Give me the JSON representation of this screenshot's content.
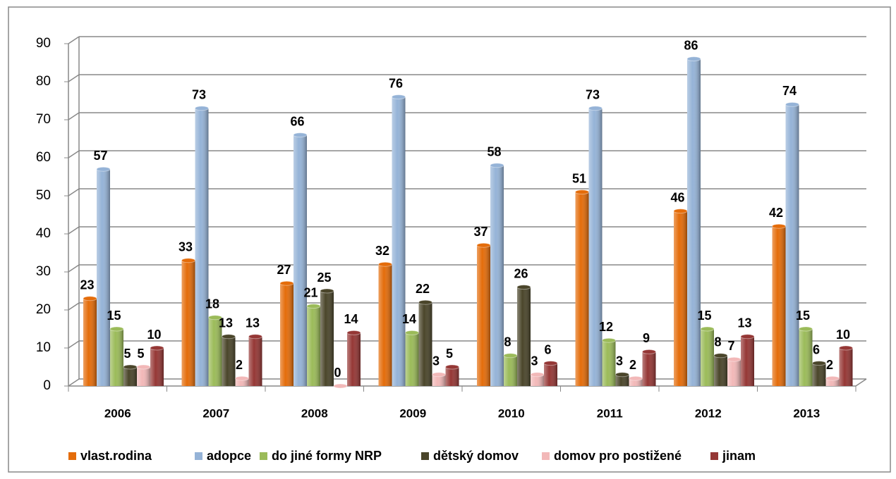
{
  "chart_data": {
    "type": "bar",
    "categories": [
      "2006",
      "2007",
      "2008",
      "2009",
      "2010",
      "2011",
      "2012",
      "2013"
    ],
    "series": [
      {
        "name": "vlast.rodina",
        "color": "#e46c0a",
        "values": [
          23,
          33,
          27,
          32,
          37,
          51,
          46,
          42
        ]
      },
      {
        "name": "adopce",
        "color": "#95b3d7",
        "values": [
          57,
          73,
          66,
          76,
          58,
          73,
          86,
          74
        ]
      },
      {
        "name": "do jiné formy NRP",
        "color": "#9bbb59",
        "values": [
          15,
          18,
          21,
          14,
          8,
          12,
          15,
          15
        ]
      },
      {
        "name": "dětský domov",
        "color": "#4a452a",
        "values": [
          5,
          13,
          25,
          22,
          26,
          3,
          8,
          6
        ]
      },
      {
        "name": "domov pro postižené",
        "color": "#f2b8b8",
        "values": [
          5,
          2,
          0,
          3,
          3,
          2,
          7,
          2
        ]
      },
      {
        "name": "jinam",
        "color": "#953735",
        "values": [
          10,
          13,
          14,
          5,
          6,
          9,
          13,
          10
        ]
      }
    ],
    "ylim": [
      0,
      90
    ],
    "yticks": [
      0,
      10,
      20,
      30,
      40,
      50,
      60,
      70,
      80,
      90
    ],
    "grid": true,
    "legend": "bottom"
  }
}
